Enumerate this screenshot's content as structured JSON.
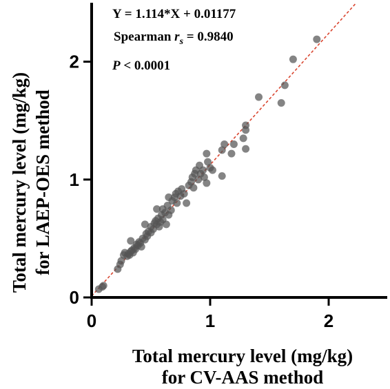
{
  "chart_data": {
    "type": "scatter",
    "xlabel": [
      "Total mercury level (mg/kg)",
      "for CV-AAS method"
    ],
    "ylabel": [
      "Total mercury level (mg/kg)",
      "for LAEP-OES method"
    ],
    "xlim": [
      0,
      2.5
    ],
    "ylim": [
      0,
      2.5
    ],
    "xticks": [
      "0",
      "1",
      "2"
    ],
    "yticks": [
      "0",
      "1",
      "2"
    ],
    "grid": false,
    "annotations": {
      "equation": "Y = 1.114*X + 0.01177",
      "spearman_label": "Spearman ",
      "spearman_symbol": "r",
      "spearman_sub": "s",
      "spearman_value": " = 0.9840",
      "p_symbol": "P",
      "p_value": " < 0.0001"
    },
    "fit_line": {
      "slope": 1.114,
      "intercept": 0.01177
    },
    "colors": {
      "point": "#555555",
      "fit": "#d9452f",
      "axis": "#000000"
    },
    "points": [
      [
        0.06,
        0.07
      ],
      [
        0.1,
        0.1
      ],
      [
        0.09,
        0.09
      ],
      [
        0.22,
        0.24
      ],
      [
        0.24,
        0.28
      ],
      [
        0.25,
        0.31
      ],
      [
        0.27,
        0.36
      ],
      [
        0.28,
        0.38
      ],
      [
        0.3,
        0.35
      ],
      [
        0.31,
        0.37
      ],
      [
        0.32,
        0.36
      ],
      [
        0.33,
        0.39
      ],
      [
        0.34,
        0.4
      ],
      [
        0.35,
        0.38
      ],
      [
        0.36,
        0.42
      ],
      [
        0.37,
        0.41
      ],
      [
        0.38,
        0.45
      ],
      [
        0.39,
        0.44
      ],
      [
        0.4,
        0.47
      ],
      [
        0.41,
        0.46
      ],
      [
        0.33,
        0.48
      ],
      [
        0.42,
        0.43
      ],
      [
        0.43,
        0.5
      ],
      [
        0.45,
        0.49
      ],
      [
        0.46,
        0.54
      ],
      [
        0.47,
        0.52
      ],
      [
        0.48,
        0.56
      ],
      [
        0.5,
        0.55
      ],
      [
        0.5,
        0.6
      ],
      [
        0.52,
        0.58
      ],
      [
        0.53,
        0.63
      ],
      [
        0.54,
        0.65
      ],
      [
        0.55,
        0.62
      ],
      [
        0.56,
        0.67
      ],
      [
        0.57,
        0.6
      ],
      [
        0.58,
        0.64
      ],
      [
        0.59,
        0.7
      ],
      [
        0.6,
        0.66
      ],
      [
        0.6,
        0.75
      ],
      [
        0.62,
        0.72
      ],
      [
        0.63,
        0.62
      ],
      [
        0.64,
        0.78
      ],
      [
        0.65,
        0.7
      ],
      [
        0.67,
        0.74
      ],
      [
        0.68,
        0.82
      ],
      [
        0.7,
        0.85
      ],
      [
        0.71,
        0.88
      ],
      [
        0.72,
        0.8
      ],
      [
        0.73,
        0.9
      ],
      [
        0.75,
        0.86
      ],
      [
        0.76,
        0.92
      ],
      [
        0.78,
        0.88
      ],
      [
        0.8,
        0.8
      ],
      [
        0.82,
        0.95
      ],
      [
        0.84,
        0.98
      ],
      [
        0.85,
        1.02
      ],
      [
        0.86,
        0.93
      ],
      [
        0.87,
        1.05
      ],
      [
        0.88,
        1.08
      ],
      [
        0.9,
        1.0
      ],
      [
        0.91,
        1.12
      ],
      [
        0.92,
        1.05
      ],
      [
        0.94,
        1.08
      ],
      [
        0.95,
        1.02
      ],
      [
        0.97,
        0.97
      ],
      [
        0.98,
        1.15
      ],
      [
        1.0,
        1.1
      ],
      [
        1.02,
        1.08
      ],
      [
        0.97,
        1.22
      ],
      [
        0.45,
        0.62
      ],
      [
        0.55,
        0.75
      ],
      [
        0.65,
        0.85
      ],
      [
        1.1,
        1.03
      ],
      [
        1.1,
        1.25
      ],
      [
        1.12,
        1.3
      ],
      [
        1.18,
        1.22
      ],
      [
        1.2,
        1.3
      ],
      [
        1.28,
        1.35
      ],
      [
        1.3,
        1.42
      ],
      [
        1.3,
        1.46
      ],
      [
        1.3,
        1.26
      ],
      [
        1.41,
        1.7
      ],
      [
        1.6,
        1.65
      ],
      [
        1.63,
        1.8
      ],
      [
        1.7,
        2.02
      ],
      [
        1.9,
        2.19
      ]
    ]
  }
}
